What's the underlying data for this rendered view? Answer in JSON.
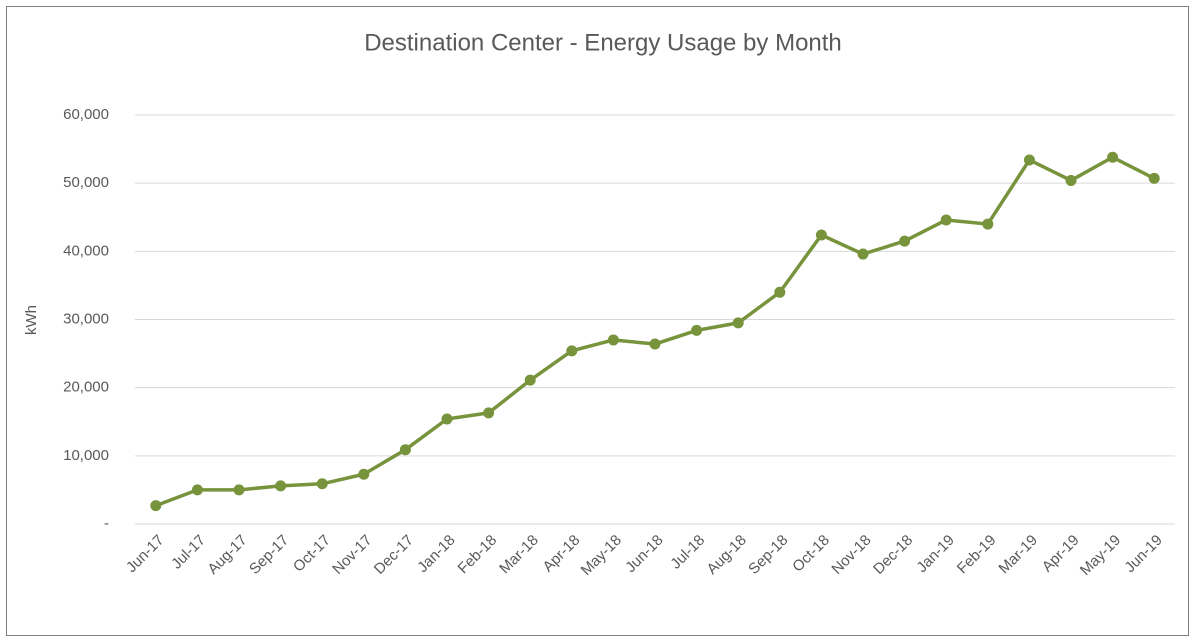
{
  "chart_data": {
    "type": "line",
    "title": "Destination Center - Energy Usage by Month",
    "y_label": "kWh",
    "categories": [
      "Jun-17",
      "Jul-17",
      "Aug-17",
      "Sep-17",
      "Oct-17",
      "Nov-17",
      "Dec-17",
      "Jan-18",
      "Feb-18",
      "Mar-18",
      "Apr-18",
      "May-18",
      "Jun-18",
      "Jul-18",
      "Aug-18",
      "Sep-18",
      "Oct-18",
      "Nov-18",
      "Dec-18",
      "Jan-19",
      "Feb-19",
      "Mar-19",
      "Apr-19",
      "May-19",
      "Jun-19"
    ],
    "values": [
      2700,
      5000,
      5000,
      5600,
      5900,
      7300,
      10900,
      15400,
      16300,
      21100,
      25400,
      27000,
      26400,
      28400,
      29500,
      34000,
      42400,
      39600,
      41500,
      44600,
      44000,
      53400,
      50400,
      53800,
      50700
    ],
    "color": "#77933c",
    "ylim": [
      0,
      60000
    ],
    "yticks": [
      {
        "value": 0,
        "label": "-"
      },
      {
        "value": 10000,
        "label": "10,000"
      },
      {
        "value": 20000,
        "label": "20,000"
      },
      {
        "value": 30000,
        "label": "30,000"
      },
      {
        "value": 40000,
        "label": "40,000"
      },
      {
        "value": 50000,
        "label": "50,000"
      },
      {
        "value": 60000,
        "label": "60,000"
      }
    ],
    "grid": true
  }
}
